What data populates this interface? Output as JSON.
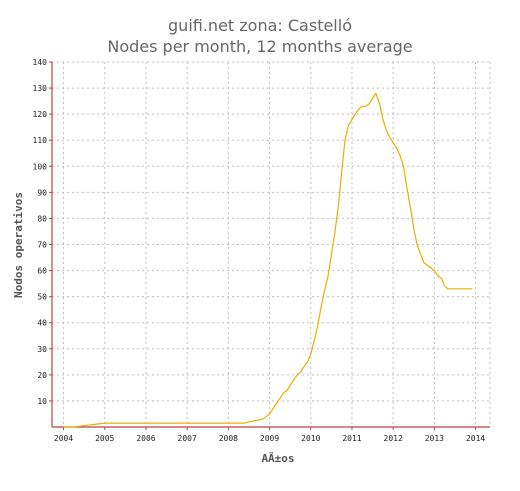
{
  "chart_data": {
    "type": "line",
    "title": "guifi.net    zona: Castelló",
    "subtitle": "Nodes per month, 12 months average",
    "xlabel": "AÃ±os",
    "ylabel": "Nodos operativos",
    "grid": true,
    "xlim": [
      2003.72,
      2014.35
    ],
    "ylim": [
      0,
      140
    ],
    "x_ticks": [
      "2004",
      "2005",
      "2006",
      "2007",
      "2008",
      "2009",
      "2010",
      "2011",
      "2012",
      "2013",
      "2014"
    ],
    "y_ticks": [
      10,
      20,
      30,
      40,
      50,
      60,
      70,
      80,
      90,
      100,
      110,
      120,
      130,
      140
    ],
    "colors": {
      "series": "#e8b000",
      "axis": "#c04040",
      "grid": "#c0c0c0"
    },
    "series": [
      {
        "x": [
          2004.0,
          2004.25,
          2004.5,
          2004.75,
          2005.0,
          2005.5,
          2006.0,
          2006.5,
          2007.0,
          2007.5,
          2008.0,
          2008.4,
          2008.5,
          2008.67,
          2008.83,
          2009.0,
          2009.08,
          2009.17,
          2009.25,
          2009.33,
          2009.42,
          2009.5,
          2009.58,
          2009.67,
          2009.75,
          2009.83,
          2009.92,
          2010.0,
          2010.08,
          2010.17,
          2010.25,
          2010.33,
          2010.42,
          2010.5,
          2010.58,
          2010.67,
          2010.75,
          2010.83,
          2010.92,
          2011.0,
          2011.08,
          2011.17,
          2011.25,
          2011.33,
          2011.42,
          2011.5,
          2011.58,
          2011.67,
          2011.75,
          2011.83,
          2011.92,
          2012.0,
          2012.08,
          2012.17,
          2012.25,
          2012.33,
          2012.42,
          2012.5,
          2012.58,
          2012.67,
          2012.75,
          2012.83,
          2012.92,
          2013.0,
          2013.08,
          2013.17,
          2013.25,
          2013.33,
          2013.42,
          2013.5,
          2013.58,
          2013.67,
          2013.75,
          2013.83,
          2013.92
        ],
        "y": [
          0,
          0,
          0.5,
          1,
          1.5,
          1.5,
          1.5,
          1.5,
          1.5,
          1.5,
          1.5,
          1.5,
          2,
          2.5,
          3,
          5,
          7,
          9,
          11,
          13,
          14,
          16,
          18,
          20,
          21,
          23,
          25,
          28,
          33,
          39,
          46,
          52,
          58,
          66,
          74,
          85,
          98,
          110,
          116,
          118,
          120,
          122,
          123,
          123,
          124,
          126,
          128,
          124,
          118,
          114,
          111,
          109,
          107,
          104,
          100,
          92,
          84,
          76,
          70,
          66,
          63,
          62,
          61,
          60,
          58,
          57,
          54,
          53,
          53,
          53,
          53,
          53,
          53,
          53,
          53
        ]
      }
    ]
  }
}
